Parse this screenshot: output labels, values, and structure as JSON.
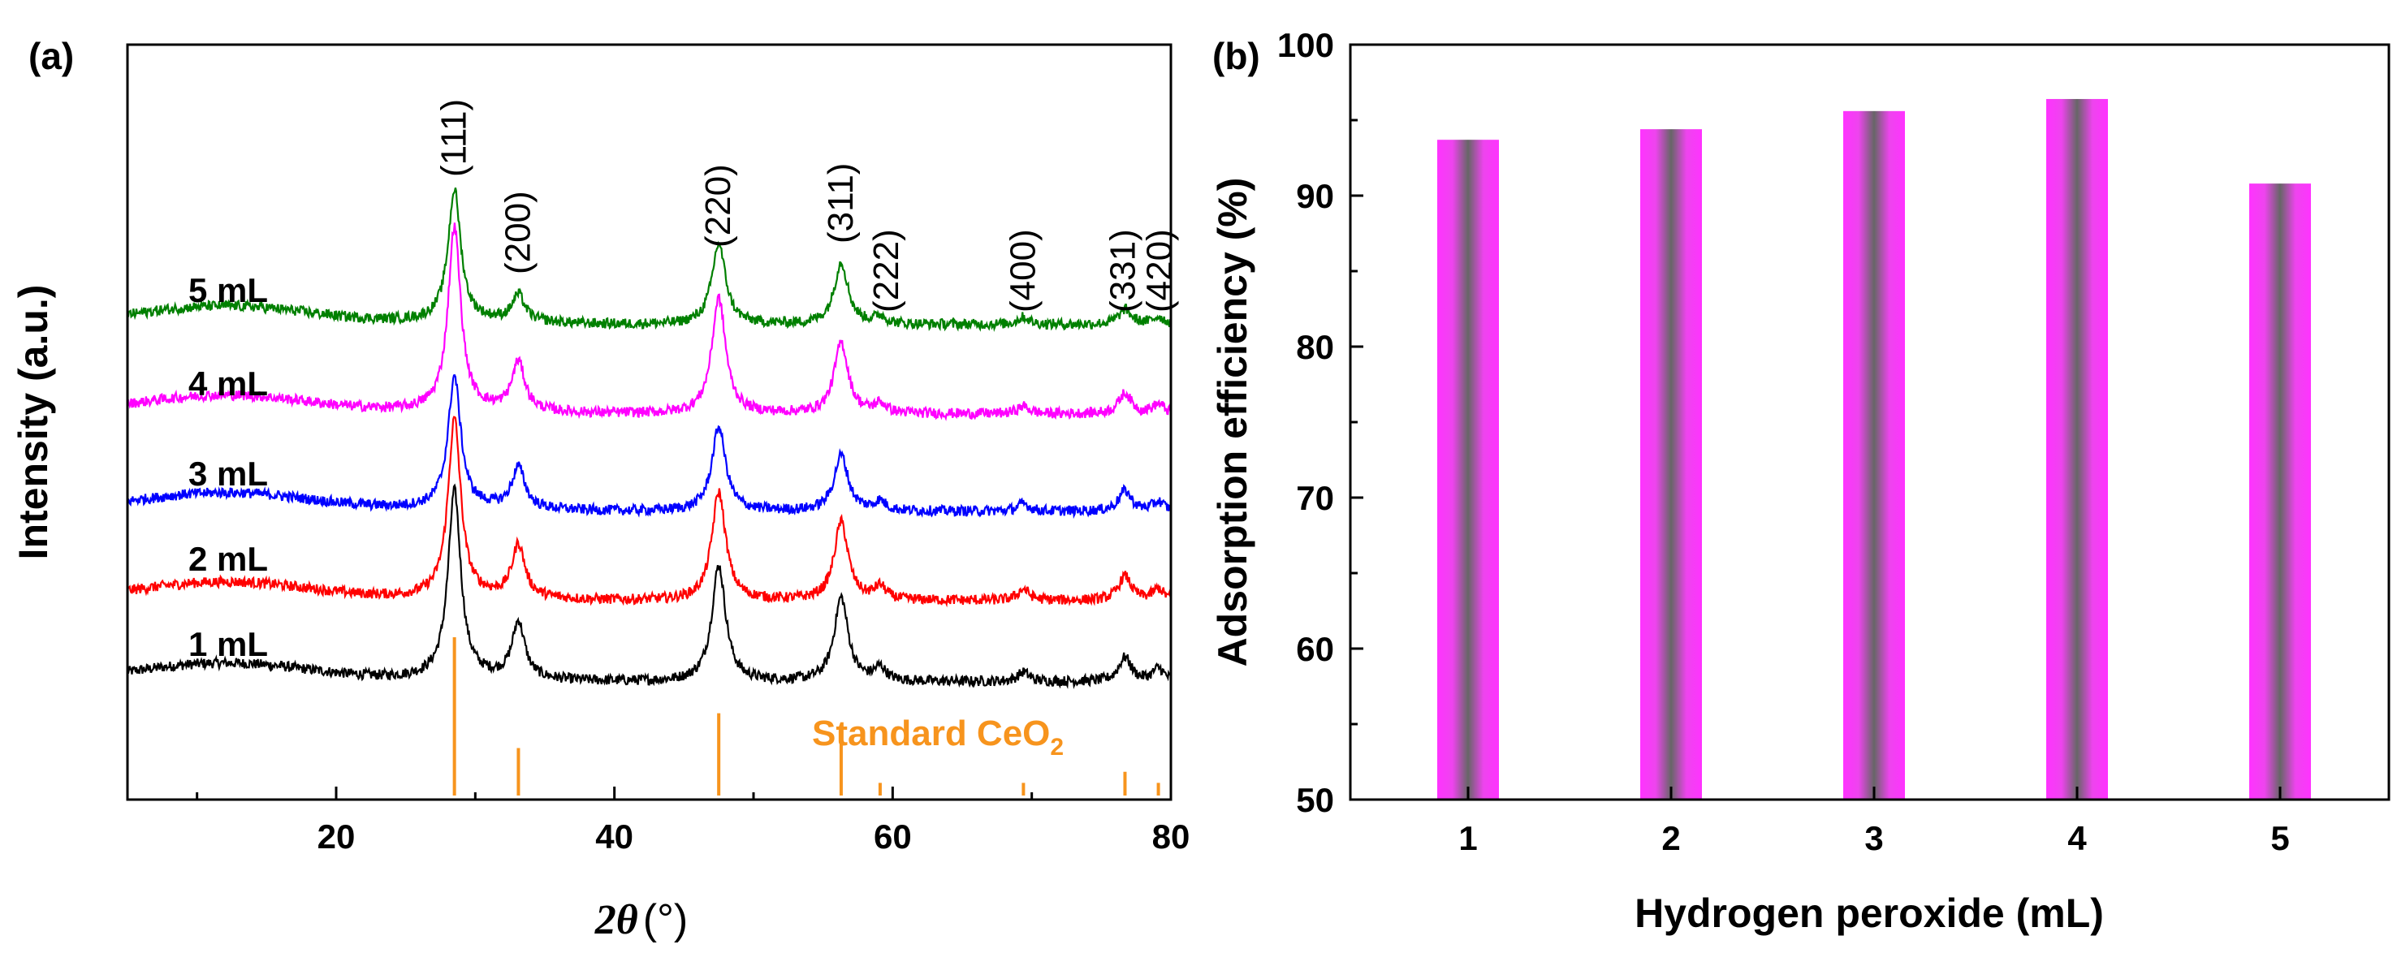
{
  "chart_data": [
    {
      "panel": "(a)",
      "type": "line",
      "xlabel": "2θ (°)",
      "xlabel_symbol": "2θ",
      "xlabel_unit": "(°)",
      "ylabel": "Intensity (a.u.)",
      "xlim": [
        5,
        80
      ],
      "x_ticks": [
        20,
        40,
        60,
        80
      ],
      "x_minor_ticks": [
        10,
        30,
        50,
        70
      ],
      "series": [
        {
          "name": "1 mL",
          "color": "#000000",
          "peaks": [
            {
              "x": 28.5,
              "height": 1.0
            },
            {
              "x": 33.1,
              "height": 0.3
            },
            {
              "x": 47.5,
              "height": 0.62
            },
            {
              "x": 56.3,
              "height": 0.45
            },
            {
              "x": 59.1,
              "height": 0.07
            },
            {
              "x": 69.4,
              "height": 0.05
            },
            {
              "x": 76.7,
              "height": 0.13
            },
            {
              "x": 79.1,
              "height": 0.07
            }
          ]
        },
        {
          "name": "2 mL",
          "color": "#ff0000",
          "peaks": [
            {
              "x": 28.5,
              "height": 0.95
            },
            {
              "x": 33.1,
              "height": 0.28
            },
            {
              "x": 47.5,
              "height": 0.58
            },
            {
              "x": 56.3,
              "height": 0.42
            },
            {
              "x": 59.1,
              "height": 0.07
            },
            {
              "x": 69.4,
              "height": 0.06
            },
            {
              "x": 76.7,
              "height": 0.13
            },
            {
              "x": 79.1,
              "height": 0.06
            }
          ]
        },
        {
          "name": "3 mL",
          "color": "#0000ff",
          "peaks": [
            {
              "x": 28.5,
              "height": 0.7
            },
            {
              "x": 33.1,
              "height": 0.22
            },
            {
              "x": 47.5,
              "height": 0.45
            },
            {
              "x": 56.3,
              "height": 0.3
            },
            {
              "x": 59.1,
              "height": 0.05
            },
            {
              "x": 69.4,
              "height": 0.04
            },
            {
              "x": 76.7,
              "height": 0.11
            },
            {
              "x": 79.1,
              "height": 0.05
            }
          ]
        },
        {
          "name": "4 mL",
          "color": "#ff00ff",
          "peaks": [
            {
              "x": 28.5,
              "height": 0.98
            },
            {
              "x": 33.1,
              "height": 0.26
            },
            {
              "x": 47.5,
              "height": 0.62
            },
            {
              "x": 56.3,
              "height": 0.38
            },
            {
              "x": 59.1,
              "height": 0.05
            },
            {
              "x": 69.4,
              "height": 0.04
            },
            {
              "x": 76.7,
              "height": 0.11
            },
            {
              "x": 79.1,
              "height": 0.05
            }
          ]
        },
        {
          "name": "5 mL",
          "color": "#008000",
          "peaks": [
            {
              "x": 28.5,
              "height": 0.7
            },
            {
              "x": 33.1,
              "height": 0.14
            },
            {
              "x": 47.5,
              "height": 0.43
            },
            {
              "x": 56.3,
              "height": 0.33
            },
            {
              "x": 59.1,
              "height": 0.04
            },
            {
              "x": 69.4,
              "height": 0.04
            },
            {
              "x": 76.7,
              "height": 0.08
            },
            {
              "x": 79.1,
              "height": 0.04
            }
          ]
        }
      ],
      "reference": {
        "label": "Standard CeO",
        "label_subscript": "2",
        "color": "#f7941d",
        "lines": [
          {
            "x": 28.5,
            "intensity": 100
          },
          {
            "x": 33.1,
            "intensity": 30
          },
          {
            "x": 47.5,
            "intensity": 52
          },
          {
            "x": 56.3,
            "intensity": 42
          },
          {
            "x": 59.1,
            "intensity": 8
          },
          {
            "x": 69.4,
            "intensity": 8
          },
          {
            "x": 76.7,
            "intensity": 15
          },
          {
            "x": 79.1,
            "intensity": 8
          }
        ]
      },
      "plane_labels": [
        {
          "text": "(111)",
          "x": 28.5
        },
        {
          "text": "(200)",
          "x": 33.1
        },
        {
          "text": "(220)",
          "x": 47.5
        },
        {
          "text": "(311)",
          "x": 56.3
        },
        {
          "text": "(222)",
          "x": 59.1
        },
        {
          "text": "(400)",
          "x": 69.4
        },
        {
          "text": "(331)",
          "x": 76.7
        },
        {
          "text": "(420)",
          "x": 79.1
        }
      ]
    },
    {
      "panel": "(b)",
      "type": "bar",
      "xlabel": "Hydrogen peroxide (mL)",
      "ylabel": "Adsorption efficiency (%)",
      "categories": [
        "1",
        "2",
        "3",
        "4",
        "5"
      ],
      "values": [
        93.7,
        94.4,
        95.6,
        96.4,
        90.8
      ],
      "ylim": [
        50,
        100
      ],
      "y_ticks": [
        50,
        60,
        70,
        80,
        90,
        100
      ],
      "bar_colors": {
        "edge": "#ff33ff",
        "center": "#666666"
      }
    }
  ]
}
